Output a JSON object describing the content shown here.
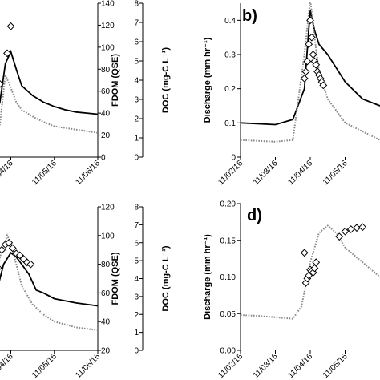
{
  "chart_data": [
    {
      "panel": "",
      "type": "line",
      "xlim": [
        "11/02/16",
        "11/06/16"
      ],
      "x_ticks": [
        "11/04/16",
        "11/05/16",
        "11/06/16"
      ],
      "axes": [
        {
          "id": "fdom",
          "label": "FDOM (QSE)",
          "ylim": [
            0,
            140
          ],
          "ticks": [
            0,
            20,
            40,
            60,
            80,
            100,
            120,
            140
          ]
        },
        {
          "id": "doc",
          "label": "DOC (mg-C L⁻¹)",
          "ylim": [
            0,
            8
          ],
          "ticks": [
            0,
            1,
            2,
            3,
            4,
            5,
            6,
            7,
            8
          ]
        }
      ],
      "series": [
        {
          "axis": "fdom",
          "style": "solid",
          "x": [
            "11/03/16 12:00",
            "11/03/16 18:00",
            "11/03/16 21:00",
            "11/04/16 00:00",
            "11/04/16 03:00",
            "11/04/16 06:00",
            "11/04/16 12:00",
            "11/04/16 18:00",
            "11/05/16 00:00",
            "11/05/16 06:00",
            "11/05/16 12:00",
            "11/05/16 18:00",
            "11/06/16 00:00",
            "11/06/16 06:00",
            "11/06/16 12:00"
          ],
          "y": [
            22,
            50,
            85,
            96,
            80,
            65,
            56,
            50,
            46,
            43,
            41,
            40,
            39,
            38,
            38
          ]
        },
        {
          "axis": "fdom",
          "style": "dotted",
          "x": [
            "11/03/16 12:00",
            "11/03/16 18:00",
            "11/03/16 21:00",
            "11/04/16 00:00",
            "11/04/16 03:00",
            "11/04/16 06:00",
            "11/04/16 12:00",
            "11/04/16 18:00",
            "11/05/16 00:00",
            "11/05/16 12:00",
            "11/06/16 00:00",
            "11/06/16 12:00"
          ],
          "y": [
            5,
            30,
            75,
            63,
            50,
            43,
            37,
            32,
            28,
            25,
            22,
            20
          ]
        },
        {
          "axis": "doc",
          "style": "markers",
          "x": [
            "11/03/16 14:00",
            "11/03/16 18:00",
            "11/03/16 22:00",
            "11/04/16 00:00"
          ],
          "y": [
            3.0,
            3.8,
            5.4,
            6.8
          ]
        }
      ]
    },
    {
      "panel": "b)",
      "type": "line",
      "xlim": [
        "11/02/16",
        "11/06/16"
      ],
      "x_ticks": [
        "11/02/16",
        "11/03/16",
        "11/04/16",
        "11/05/16"
      ],
      "axes": [
        {
          "id": "q",
          "label": "Discharge (mm hr⁻¹)",
          "ylim": [
            0,
            0.45
          ],
          "ticks": [
            "0",
            "0.1",
            "0.2",
            "0.3",
            "0.4"
          ]
        }
      ],
      "series": [
        {
          "axis": "q",
          "style": "solid",
          "x": [
            "11/02/16 00:00",
            "11/03/16 00:00",
            "11/03/16 12:00",
            "11/03/16 20:00",
            "11/04/16 00:00",
            "11/04/16 03:00",
            "11/04/16 06:00",
            "11/04/16 12:00",
            "11/05/16 00:00",
            "11/05/16 12:00",
            "11/06/16 00:00"
          ],
          "y": [
            0.1,
            0.095,
            0.11,
            0.2,
            0.43,
            0.37,
            0.33,
            0.3,
            0.22,
            0.17,
            0.15
          ]
        },
        {
          "axis": "q",
          "style": "dotted",
          "x": [
            "11/02/16 00:00",
            "11/03/16 00:00",
            "11/03/16 12:00",
            "11/03/16 20:00",
            "11/04/16 00:00",
            "11/04/16 03:00",
            "11/04/16 06:00",
            "11/04/16 12:00",
            "11/05/16 00:00",
            "11/06/16 00:00"
          ],
          "y": [
            0.05,
            0.045,
            0.05,
            0.3,
            0.46,
            0.35,
            0.25,
            0.17,
            0.1,
            0.05
          ]
        },
        {
          "axis": "q",
          "style": "markers",
          "x": [
            "11/03/16 20:00",
            "11/03/16 21:00",
            "11/03/16 22:00",
            "11/03/16 23:00",
            "11/04/16 00:00",
            "11/04/16 01:00",
            "11/04/16 02:00",
            "11/04/16 03:00",
            "11/04/16 04:00",
            "11/04/16 05:00",
            "11/04/16 06:00",
            "11/04/16 07:00",
            "11/04/16 08:00",
            "11/04/16 09:00"
          ],
          "y": [
            0.23,
            0.25,
            0.28,
            0.33,
            0.4,
            0.35,
            0.3,
            0.28,
            0.27,
            0.25,
            0.24,
            0.23,
            0.22,
            0.21
          ]
        }
      ]
    },
    {
      "panel": "",
      "type": "line",
      "xlim": [
        "11/02/16",
        "11/06/16"
      ],
      "x_ticks": [
        "11/04/16",
        "11/05/16",
        "11/06/16"
      ],
      "axes": [
        {
          "id": "fdom",
          "label": "FDOM (QSE)",
          "ylim": [
            20,
            120
          ],
          "ticks": [
            20,
            40,
            60,
            80,
            100,
            120
          ]
        },
        {
          "id": "doc",
          "label": "DOC (mg-C L⁻¹)",
          "ylim": [
            0,
            8
          ],
          "ticks": [
            0,
            1,
            2,
            3,
            4,
            5,
            6,
            7,
            8
          ]
        }
      ],
      "series": [
        {
          "axis": "fdom",
          "style": "solid",
          "x": [
            "11/03/16 12:00",
            "11/03/16 16:00",
            "11/03/16 20:00",
            "11/04/16 00:00",
            "11/04/16 03:00",
            "11/04/16 06:00",
            "11/04/16 10:00",
            "11/04/16 14:00",
            "11/04/16 18:00",
            "11/05/16 00:00",
            "11/05/16 12:00",
            "11/06/16 00:00",
            "11/06/16 12:00"
          ],
          "y": [
            45,
            60,
            80,
            88,
            85,
            80,
            73,
            62,
            60,
            56,
            53,
            51,
            49
          ]
        },
        {
          "axis": "fdom",
          "style": "dotted",
          "x": [
            "11/03/16 12:00",
            "11/03/16 18:00",
            "11/03/16 22:00",
            "11/04/16 00:00",
            "11/04/16 03:00",
            "11/04/16 06:00",
            "11/04/16 12:00",
            "11/04/16 18:00",
            "11/05/16 00:00",
            "11/05/16 12:00",
            "11/06/16 00:00",
            "11/06/16 12:00"
          ],
          "y": [
            40,
            85,
            100,
            95,
            80,
            65,
            52,
            45,
            40,
            36,
            34,
            32
          ]
        },
        {
          "axis": "doc",
          "style": "markers",
          "x": [
            "11/03/16 14:00",
            "11/03/16 17:00",
            "11/03/16 19:00",
            "11/03/16 21:00",
            "11/03/16 23:00",
            "11/04/16 01:00",
            "11/04/16 03:00",
            "11/04/16 05:00",
            "11/04/16 07:00",
            "11/04/16 09:00",
            "11/04/16 11:00"
          ],
          "y": [
            3.5,
            4.6,
            5.6,
            5.9,
            6.0,
            5.7,
            5.4,
            5.3,
            5.1,
            4.9,
            4.8
          ]
        }
      ]
    },
    {
      "panel": "d)",
      "type": "line",
      "xlim": [
        "11/02/16",
        "11/06/16"
      ],
      "x_ticks": [
        "11/02/16",
        "11/03/16",
        "11/04/16",
        "11/05/16"
      ],
      "axes": [
        {
          "id": "q",
          "label": "Discharge (mm hr⁻¹)",
          "ylim": [
            0,
            0.2
          ],
          "ticks": [
            "0.00",
            "0.05",
            "0.10",
            "0.15",
            "0.20"
          ]
        }
      ],
      "series": [
        {
          "axis": "q",
          "style": "dotted",
          "x": [
            "11/02/16 00:00",
            "11/02/16 12:00",
            "11/03/16 00:00",
            "11/03/16 12:00",
            "11/03/16 18:00",
            "11/04/16 00:00",
            "11/04/16 06:00",
            "11/04/16 12:00",
            "11/04/16 18:00",
            "11/05/16 00:00",
            "11/05/16 12:00",
            "11/06/16 00:00"
          ],
          "y": [
            0.048,
            0.047,
            0.045,
            0.043,
            0.06,
            0.12,
            0.16,
            0.17,
            0.16,
            0.14,
            0.12,
            0.1
          ]
        },
        {
          "axis": "q",
          "style": "markers",
          "x": [
            "11/03/16 20:00",
            "11/03/16 21:00",
            "11/03/16 22:00",
            "11/03/16 23:00",
            "11/04/16 00:00",
            "11/04/16 01:00",
            "11/04/16 02:00",
            "11/04/16 03:00",
            "11/04/16 04:00",
            "11/04/16 20:00",
            "11/05/16 00:00",
            "11/05/16 04:00",
            "11/05/16 08:00",
            "11/05/16 12:00"
          ],
          "y": [
            0.133,
            0.092,
            0.098,
            0.102,
            0.11,
            0.108,
            0.106,
            0.112,
            0.12,
            0.155,
            0.162,
            0.165,
            0.167,
            0.168
          ]
        }
      ]
    }
  ]
}
